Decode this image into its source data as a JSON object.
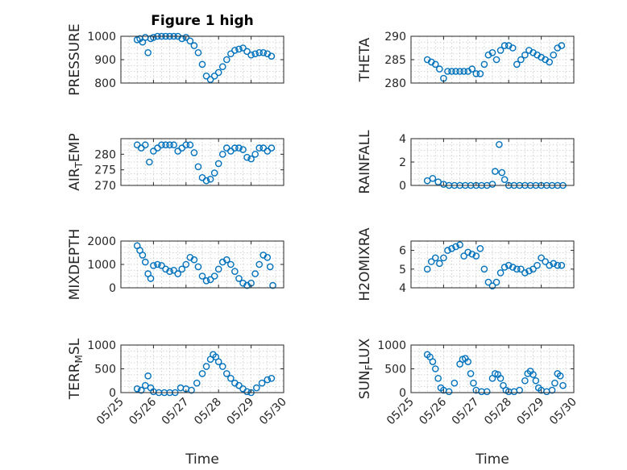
{
  "colors": {
    "marker": "#0072BD",
    "axis": "#262626",
    "grid": "#c8c8c8"
  },
  "chart_data": [
    {
      "type": "scatter",
      "title": "Figure 1 high",
      "ylabel": "PRESSURE",
      "xlabel": "",
      "ylim": [
        800,
        1000
      ],
      "yticks": [
        "800",
        "900",
        "1000"
      ],
      "xlim": [
        "05/25",
        "05/30"
      ],
      "xticks": [],
      "grid": true,
      "x": [
        "05/25 12:00",
        "05/25 14:00",
        "05/25 16:00",
        "05/25 18:00",
        "05/25 20:00",
        "05/25 22:00",
        "05/26 00:00",
        "05/26 03:00",
        "05/26 06:00",
        "05/26 09:00",
        "05/26 12:00",
        "05/26 15:00",
        "05/26 18:00",
        "05/26 21:00",
        "05/27 00:00",
        "05/27 03:00",
        "05/27 06:00",
        "05/27 09:00",
        "05/27 12:00",
        "05/27 15:00",
        "05/27 18:00",
        "05/27 21:00",
        "05/28 00:00",
        "05/28 03:00",
        "05/28 06:00",
        "05/28 09:00",
        "05/28 12:00",
        "05/28 15:00",
        "05/28 18:00",
        "05/28 21:00",
        "05/29 00:00",
        "05/29 03:00",
        "05/29 06:00",
        "05/29 09:00",
        "05/29 12:00",
        "05/29 15:00"
      ],
      "y": [
        985,
        990,
        975,
        995,
        930,
        990,
        995,
        1000,
        1000,
        1000,
        1000,
        1000,
        1000,
        990,
        995,
        980,
        960,
        930,
        880,
        830,
        815,
        830,
        845,
        870,
        900,
        925,
        940,
        945,
        950,
        935,
        920,
        925,
        930,
        930,
        925,
        915
      ]
    },
    {
      "type": "scatter",
      "title": "",
      "ylabel": "THETA",
      "xlabel": "",
      "ylim": [
        280,
        290
      ],
      "yticks": [
        "280",
        "285",
        "290"
      ],
      "xlim": [
        "05/25",
        "05/30"
      ],
      "xticks": [],
      "grid": true,
      "x": [
        "05/25 12:00",
        "05/25 15:00",
        "05/25 18:00",
        "05/25 21:00",
        "05/26 00:00",
        "05/26 03:00",
        "05/26 06:00",
        "05/26 09:00",
        "05/26 12:00",
        "05/26 15:00",
        "05/26 18:00",
        "05/26 21:00",
        "05/27 00:00",
        "05/27 03:00",
        "05/27 06:00",
        "05/27 09:00",
        "05/27 12:00",
        "05/27 15:00",
        "05/27 18:00",
        "05/27 21:00",
        "05/28 00:00",
        "05/28 03:00",
        "05/28 06:00",
        "05/28 09:00",
        "05/28 12:00",
        "05/28 15:00",
        "05/28 18:00",
        "05/28 21:00",
        "05/29 00:00",
        "05/29 03:00",
        "05/29 06:00",
        "05/29 09:00",
        "05/29 12:00",
        "05/29 15:00"
      ],
      "y": [
        285,
        284.5,
        284,
        283,
        281,
        282.5,
        282.5,
        282.5,
        282.5,
        282.5,
        282.5,
        283,
        282,
        282,
        284,
        286,
        286.5,
        285,
        287,
        288,
        288,
        287.5,
        284,
        285,
        286,
        287,
        286.5,
        286,
        285.5,
        285,
        284.5,
        286,
        287.5,
        288
      ]
    },
    {
      "type": "scatter",
      "title": "",
      "ylabel": "AIR_TEMP",
      "xlabel": "",
      "ylim": [
        270,
        285
      ],
      "yticks": [
        "270",
        "275",
        "280"
      ],
      "xlim": [
        "05/25",
        "05/30"
      ],
      "xticks": [],
      "grid": true,
      "x": [
        "05/25 12:00",
        "05/25 15:00",
        "05/25 18:00",
        "05/25 21:00",
        "05/26 00:00",
        "05/26 03:00",
        "05/26 06:00",
        "05/26 09:00",
        "05/26 12:00",
        "05/26 15:00",
        "05/26 18:00",
        "05/26 21:00",
        "05/27 00:00",
        "05/27 03:00",
        "05/27 06:00",
        "05/27 09:00",
        "05/27 12:00",
        "05/27 15:00",
        "05/27 18:00",
        "05/27 21:00",
        "05/28 00:00",
        "05/28 03:00",
        "05/28 06:00",
        "05/28 09:00",
        "05/28 12:00",
        "05/28 15:00",
        "05/28 18:00",
        "05/28 21:00",
        "05/29 00:00",
        "05/29 03:00",
        "05/29 06:00",
        "05/29 09:00",
        "05/29 12:00",
        "05/29 15:00"
      ],
      "y": [
        283,
        282,
        283,
        277.5,
        281,
        282,
        283,
        283,
        283,
        283,
        281,
        282,
        283,
        283,
        280.5,
        276,
        272.5,
        271.5,
        272,
        274,
        277,
        280,
        282,
        281,
        282,
        282,
        281.5,
        279,
        278.5,
        280,
        282,
        282,
        281,
        282
      ]
    },
    {
      "type": "scatter",
      "title": "",
      "ylabel": "RAINFALL",
      "xlabel": "",
      "ylim": [
        0,
        4
      ],
      "yticks": [
        "0",
        "2",
        "4"
      ],
      "xlim": [
        "05/25",
        "05/30"
      ],
      "xticks": [],
      "grid": true,
      "x": [
        "05/25 12:00",
        "05/25 16:00",
        "05/25 20:00",
        "05/26 00:00",
        "05/26 04:00",
        "05/26 08:00",
        "05/26 12:00",
        "05/26 16:00",
        "05/26 20:00",
        "05/27 00:00",
        "05/27 04:00",
        "05/27 08:00",
        "05/27 12:00",
        "05/27 14:00",
        "05/27 17:00",
        "05/27 19:00",
        "05/27 21:00",
        "05/28 00:00",
        "05/28 04:00",
        "05/28 08:00",
        "05/28 12:00",
        "05/28 16:00",
        "05/28 20:00",
        "05/29 00:00",
        "05/29 04:00",
        "05/29 08:00",
        "05/29 12:00",
        "05/29 16:00"
      ],
      "y": [
        0.4,
        0.6,
        0.3,
        0.1,
        0,
        0,
        0,
        0,
        0,
        0,
        0,
        0,
        0.1,
        1.2,
        3.5,
        1.1,
        0.5,
        0,
        0,
        0,
        0,
        0,
        0,
        0,
        0,
        0,
        0,
        0
      ]
    },
    {
      "type": "scatter",
      "title": "",
      "ylabel": "MIXDEPTH",
      "xlabel": "",
      "ylim": [
        0,
        2000
      ],
      "yticks": [
        "0",
        "1000",
        "2000"
      ],
      "xlim": [
        "05/25",
        "05/30"
      ],
      "xticks": [],
      "grid": true,
      "x": [
        "05/25 12:00",
        "05/25 14:00",
        "05/25 16:00",
        "05/25 18:00",
        "05/25 20:00",
        "05/25 22:00",
        "05/26 00:00",
        "05/26 03:00",
        "05/26 06:00",
        "05/26 09:00",
        "05/26 12:00",
        "05/26 15:00",
        "05/26 18:00",
        "05/26 21:00",
        "05/27 00:00",
        "05/27 03:00",
        "05/27 06:00",
        "05/27 09:00",
        "05/27 12:00",
        "05/27 15:00",
        "05/27 18:00",
        "05/27 21:00",
        "05/28 00:00",
        "05/28 03:00",
        "05/28 06:00",
        "05/28 09:00",
        "05/28 12:00",
        "05/28 15:00",
        "05/28 18:00",
        "05/28 21:00",
        "05/29 00:00",
        "05/29 03:00",
        "05/29 06:00",
        "05/29 09:00",
        "05/29 12:00",
        "05/29 14:00",
        "05/29 16:00"
      ],
      "y": [
        1800,
        1600,
        1400,
        1100,
        600,
        400,
        950,
        1000,
        950,
        800,
        700,
        750,
        600,
        800,
        1000,
        1300,
        1200,
        900,
        500,
        300,
        350,
        500,
        800,
        1100,
        1200,
        1000,
        700,
        400,
        200,
        100,
        200,
        600,
        1000,
        1400,
        1300,
        900,
        100
      ]
    },
    {
      "type": "scatter",
      "title": "",
      "ylabel": "H2OMIXRA",
      "xlabel": "",
      "ylim": [
        4,
        6.5
      ],
      "yticks": [
        "4",
        "5",
        "6"
      ],
      "xlim": [
        "05/25",
        "05/30"
      ],
      "xticks": [],
      "grid": true,
      "x": [
        "05/25 12:00",
        "05/25 15:00",
        "05/25 18:00",
        "05/25 21:00",
        "05/26 00:00",
        "05/26 03:00",
        "05/26 06:00",
        "05/26 09:00",
        "05/26 12:00",
        "05/26 15:00",
        "05/26 18:00",
        "05/26 21:00",
        "05/27 00:00",
        "05/27 03:00",
        "05/27 06:00",
        "05/27 09:00",
        "05/27 12:00",
        "05/27 15:00",
        "05/27 18:00",
        "05/27 21:00",
        "05/28 00:00",
        "05/28 03:00",
        "05/28 06:00",
        "05/28 09:00",
        "05/28 12:00",
        "05/28 15:00",
        "05/28 18:00",
        "05/28 21:00",
        "05/29 00:00",
        "05/29 03:00",
        "05/29 06:00",
        "05/29 09:00",
        "05/29 12:00",
        "05/29 15:00"
      ],
      "y": [
        5,
        5.4,
        5.6,
        5.3,
        5.6,
        6,
        6.1,
        6.2,
        6.3,
        5.7,
        5.9,
        5.8,
        5.7,
        6.1,
        5,
        4.3,
        4.1,
        4.3,
        4.8,
        5.1,
        5.2,
        5.1,
        5,
        5,
        4.8,
        4.9,
        5,
        5.2,
        5.6,
        5.4,
        5.2,
        5.3,
        5.2,
        5.2
      ]
    },
    {
      "type": "scatter",
      "title": "",
      "ylabel": "TERR_MSL",
      "xlabel": "Time",
      "ylim": [
        0,
        1000
      ],
      "yticks": [
        "0",
        "500",
        "1000"
      ],
      "xlim": [
        "05/25",
        "05/30"
      ],
      "xticks": [
        "05/25",
        "05/26",
        "05/27",
        "05/28",
        "05/29",
        "05/30"
      ],
      "grid": true,
      "x": [
        "05/25 12:00",
        "05/25 15:00",
        "05/25 18:00",
        "05/25 20:00",
        "05/25 22:00",
        "05/26 00:00",
        "05/26 04:00",
        "05/26 08:00",
        "05/26 12:00",
        "05/26 16:00",
        "05/26 20:00",
        "05/27 00:00",
        "05/27 04:00",
        "05/27 08:00",
        "05/27 12:00",
        "05/27 15:00",
        "05/27 18:00",
        "05/27 20:00",
        "05/27 22:00",
        "05/28 00:00",
        "05/28 03:00",
        "05/28 06:00",
        "05/28 09:00",
        "05/28 12:00",
        "05/28 15:00",
        "05/28 18:00",
        "05/28 21:00",
        "05/29 00:00",
        "05/29 04:00",
        "05/29 08:00",
        "05/29 12:00",
        "05/29 15:00"
      ],
      "y": [
        80,
        50,
        150,
        350,
        100,
        20,
        0,
        0,
        0,
        0,
        100,
        80,
        50,
        200,
        400,
        550,
        700,
        800,
        750,
        650,
        550,
        400,
        300,
        200,
        150,
        80,
        20,
        0,
        100,
        200,
        270,
        300
      ]
    },
    {
      "type": "scatter",
      "title": "",
      "ylabel": "SUN_FLUX",
      "xlabel": "Time",
      "ylim": [
        0,
        1000
      ],
      "yticks": [
        "0",
        "500",
        "1000"
      ],
      "xlim": [
        "05/25",
        "05/30"
      ],
      "xticks": [
        "05/25",
        "05/26",
        "05/27",
        "05/28",
        "05/29",
        "05/30"
      ],
      "grid": true,
      "x": [
        "05/25 12:00",
        "05/25 14:00",
        "05/25 16:00",
        "05/25 18:00",
        "05/25 20:00",
        "05/25 22:00",
        "05/26 00:00",
        "05/26 04:00",
        "05/26 08:00",
        "05/26 12:00",
        "05/26 14:00",
        "05/26 16:00",
        "05/26 18:00",
        "05/26 20:00",
        "05/26 22:00",
        "05/27 00:00",
        "05/27 04:00",
        "05/27 08:00",
        "05/27 12:00",
        "05/27 14:00",
        "05/27 16:00",
        "05/27 18:00",
        "05/27 20:00",
        "05/27 22:00",
        "05/28 00:00",
        "05/28 04:00",
        "05/28 08:00",
        "05/28 12:00",
        "05/28 14:00",
        "05/28 16:00",
        "05/28 18:00",
        "05/28 20:00",
        "05/28 22:00",
        "05/29 00:00",
        "05/29 04:00",
        "05/29 08:00",
        "05/29 10:00",
        "05/29 12:00",
        "05/29 14:00",
        "05/29 16:00"
      ],
      "y": [
        800,
        750,
        650,
        500,
        300,
        100,
        50,
        20,
        200,
        600,
        700,
        720,
        650,
        400,
        200,
        50,
        20,
        20,
        300,
        400,
        380,
        300,
        150,
        50,
        20,
        20,
        50,
        250,
        400,
        450,
        380,
        250,
        100,
        50,
        20,
        50,
        200,
        400,
        350,
        150
      ]
    }
  ]
}
